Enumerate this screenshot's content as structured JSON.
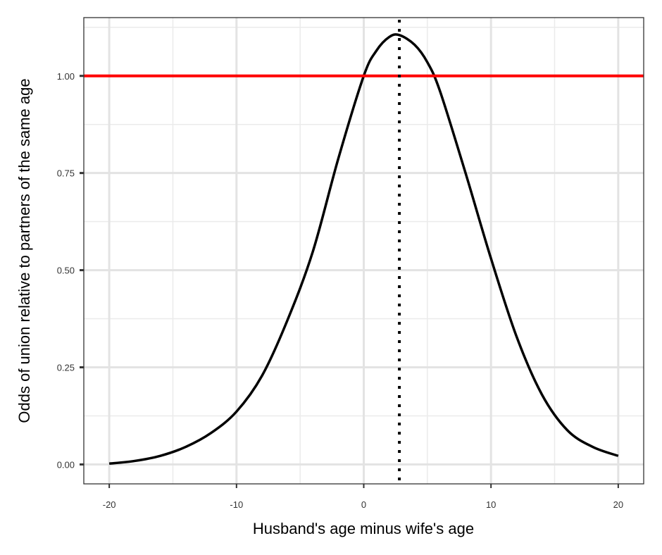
{
  "chart_data": {
    "type": "line",
    "title": "",
    "xlabel": "Husband's age minus wife's age",
    "ylabel": "Odds of union relative to partners of the same age",
    "xlim": [
      -22,
      22
    ],
    "ylim": [
      -0.05,
      1.15
    ],
    "x_ticks": [
      -20,
      -10,
      0,
      10,
      20
    ],
    "x_tick_labels": [
      "-20",
      "-10",
      "0",
      "10",
      "20"
    ],
    "y_ticks": [
      0,
      0.25,
      0.5,
      0.75,
      1.0
    ],
    "y_tick_labels": [
      "0.00",
      "0.25",
      "0.50",
      "0.75",
      "1.00"
    ],
    "grid": true,
    "series": [
      {
        "color": "#000000",
        "style": "solid",
        "x": [
          -20,
          -18,
          -16,
          -14,
          -12,
          -10,
          -8,
          -6,
          -4,
          -2,
          0,
          1,
          2,
          2.8,
          4,
          5,
          6,
          8,
          10,
          12,
          14,
          16,
          18,
          20
        ],
        "y": [
          0.002,
          0.009,
          0.022,
          0.045,
          0.081,
          0.136,
          0.228,
          0.371,
          0.548,
          0.787,
          1.0,
          1.065,
          1.1,
          1.105,
          1.08,
          1.035,
          0.96,
          0.75,
          0.53,
          0.33,
          0.18,
          0.088,
          0.045,
          0.022
        ]
      }
    ],
    "reference_lines": [
      {
        "orientation": "horizontal",
        "value": 1.0,
        "color": "#ff0000",
        "style": "solid"
      },
      {
        "orientation": "vertical",
        "value": 2.8,
        "color": "#000000",
        "style": "dotted"
      }
    ]
  }
}
